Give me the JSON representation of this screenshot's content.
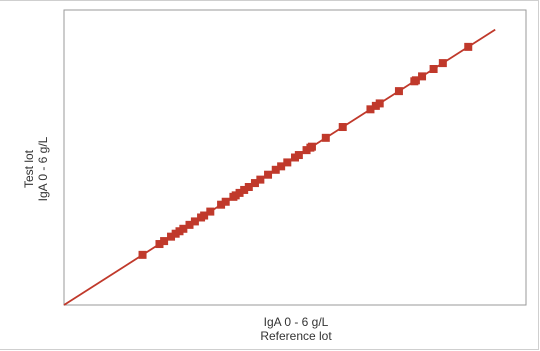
{
  "chart_data": {
    "type": "scatter",
    "title": "",
    "xlabel_lines": [
      "IgA 0 - 6 g/L",
      "Reference lot"
    ],
    "ylabel_lines": [
      "Test lot",
      "IgA 0 - 6 g/L"
    ],
    "xlim": [
      0,
      6
    ],
    "ylim": [
      0,
      6
    ],
    "grid": false,
    "tick_labels": false,
    "colors": {
      "points": "#c0392b",
      "line": "#c0392b",
      "axes": "#9a9a9a"
    },
    "regression_line": {
      "slope": 1.0,
      "intercept": 0.0
    },
    "series": [
      {
        "x": [
          1.02,
          1.24,
          1.3,
          1.39,
          1.45,
          1.5,
          1.55,
          1.63,
          1.7,
          1.78,
          1.82,
          1.9,
          2.04,
          2.1,
          2.2,
          2.23,
          2.28,
          2.34,
          2.4,
          2.48,
          2.55,
          2.65,
          2.75,
          2.82,
          2.9,
          3.0,
          3.05,
          3.15,
          3.2,
          3.22,
          3.4,
          3.62,
          3.98,
          4.05,
          4.1,
          4.35,
          4.55,
          4.57,
          4.65,
          4.8,
          4.92,
          5.25
        ],
        "y": [
          1.02,
          1.24,
          1.3,
          1.39,
          1.45,
          1.5,
          1.55,
          1.63,
          1.7,
          1.78,
          1.82,
          1.9,
          2.04,
          2.1,
          2.2,
          2.23,
          2.28,
          2.34,
          2.4,
          2.48,
          2.55,
          2.65,
          2.75,
          2.82,
          2.9,
          3.0,
          3.05,
          3.15,
          3.2,
          3.22,
          3.4,
          3.62,
          3.98,
          4.05,
          4.1,
          4.35,
          4.55,
          4.57,
          4.65,
          4.8,
          4.92,
          5.25
        ]
      }
    ]
  }
}
